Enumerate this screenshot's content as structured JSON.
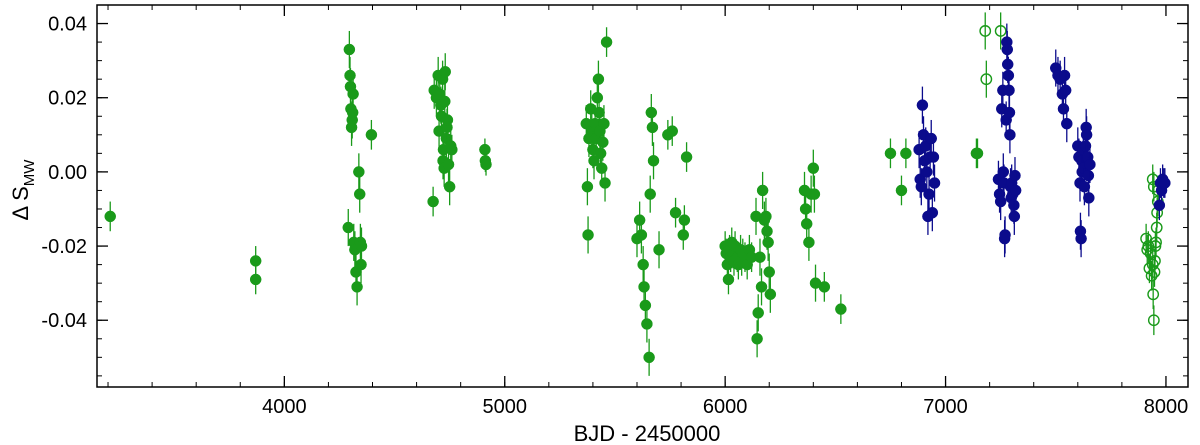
{
  "chart_data": {
    "type": "scatter",
    "xlabel": "BJD - 2450000",
    "ylabel": "Δ S",
    "ylabel_sub": "MW",
    "xlim": [
      3150,
      8100
    ],
    "ylim": [
      -0.058,
      0.045
    ],
    "xticks": [
      4000,
      5000,
      6000,
      7000,
      8000
    ],
    "xtick_labels": [
      "4000",
      "5000",
      "6000",
      "7000",
      "8000"
    ],
    "yticks": [
      -0.04,
      -0.02,
      0.0,
      0.02,
      0.04
    ],
    "ytick_labels": [
      "-0.04",
      "-0.02",
      "0.00",
      "0.02",
      "0.04"
    ],
    "x_minor_step": 200,
    "y_minor_step": 0.005,
    "grid": false,
    "colors": {
      "green": "#1a9a1a",
      "blue": "#0b0b8c"
    },
    "series": [
      {
        "color": "#1a9a1a",
        "marker": "filled-circle",
        "points": [
          [
            3210,
            -0.012,
            0.004
          ],
          [
            3870,
            -0.024,
            0.004
          ],
          [
            3870,
            -0.029,
            0.004
          ],
          [
            4295,
            0.033,
            0.005
          ],
          [
            4298,
            0.026,
            0.005
          ],
          [
            4300,
            0.023,
            0.005
          ],
          [
            4302,
            0.017,
            0.005
          ],
          [
            4305,
            0.012,
            0.005
          ],
          [
            4308,
            0.014,
            0.005
          ],
          [
            4310,
            0.016,
            0.005
          ],
          [
            4312,
            0.021,
            0.005
          ],
          [
            4290,
            -0.015,
            0.005
          ],
          [
            4315,
            -0.019,
            0.005
          ],
          [
            4320,
            -0.021,
            0.005
          ],
          [
            4325,
            -0.027,
            0.005
          ],
          [
            4330,
            -0.031,
            0.005
          ],
          [
            4338,
            -0.0,
            0.005
          ],
          [
            4342,
            -0.006,
            0.005
          ],
          [
            4345,
            -0.019,
            0.005
          ],
          [
            4348,
            -0.025,
            0.005
          ],
          [
            4350,
            -0.02,
            0.005
          ],
          [
            4395,
            0.01,
            0.004
          ],
          [
            4675,
            -0.008,
            0.004
          ],
          [
            4680,
            0.022,
            0.005
          ],
          [
            4690,
            0.02,
            0.005
          ],
          [
            4698,
            0.026,
            0.005
          ],
          [
            4702,
            0.011,
            0.005
          ],
          [
            4705,
            0.021,
            0.005
          ],
          [
            4710,
            0.018,
            0.005
          ],
          [
            4713,
            0.015,
            0.005
          ],
          [
            4718,
            0.025,
            0.005
          ],
          [
            4720,
            0.003,
            0.005
          ],
          [
            4722,
            0.006,
            0.005
          ],
          [
            4725,
            0.001,
            0.005
          ],
          [
            4728,
            0.019,
            0.005
          ],
          [
            4730,
            0.027,
            0.005
          ],
          [
            4735,
            0.009,
            0.005
          ],
          [
            4738,
            0.012,
            0.005
          ],
          [
            4740,
            0.014,
            0.005
          ],
          [
            4745,
            0.002,
            0.005
          ],
          [
            4750,
            -0.004,
            0.005
          ],
          [
            4755,
            0.007,
            0.005
          ],
          [
            4760,
            0.006,
            0.004
          ],
          [
            4910,
            0.006,
            0.003
          ],
          [
            4912,
            0.003,
            0.003
          ],
          [
            4915,
            0.002,
            0.003
          ],
          [
            5370,
            0.013,
            0.005
          ],
          [
            5375,
            -0.004,
            0.005
          ],
          [
            5378,
            -0.017,
            0.005
          ],
          [
            5382,
            0.009,
            0.005
          ],
          [
            5390,
            0.017,
            0.005
          ],
          [
            5395,
            0.011,
            0.005
          ],
          [
            5400,
            0.006,
            0.005
          ],
          [
            5405,
            0.003,
            0.005
          ],
          [
            5410,
            0.013,
            0.005
          ],
          [
            5415,
            0.009,
            0.005
          ],
          [
            5420,
            0.02,
            0.005
          ],
          [
            5425,
            0.025,
            0.005
          ],
          [
            5428,
            0.016,
            0.005
          ],
          [
            5432,
            0.011,
            0.005
          ],
          [
            5435,
            0.005,
            0.005
          ],
          [
            5440,
            0.001,
            0.005
          ],
          [
            5445,
            0.008,
            0.005
          ],
          [
            5450,
            0.013,
            0.005
          ],
          [
            5455,
            -0.003,
            0.005
          ],
          [
            5462,
            0.035,
            0.004
          ],
          [
            5600,
            -0.018,
            0.005
          ],
          [
            5612,
            -0.013,
            0.005
          ],
          [
            5620,
            -0.017,
            0.005
          ],
          [
            5628,
            -0.025,
            0.005
          ],
          [
            5632,
            -0.031,
            0.005
          ],
          [
            5638,
            -0.036,
            0.005
          ],
          [
            5645,
            -0.041,
            0.005
          ],
          [
            5655,
            -0.05,
            0.005
          ],
          [
            5660,
            -0.006,
            0.005
          ],
          [
            5665,
            0.016,
            0.005
          ],
          [
            5670,
            0.012,
            0.005
          ],
          [
            5675,
            0.003,
            0.005
          ],
          [
            5700,
            -0.021,
            0.005
          ],
          [
            5740,
            0.01,
            0.004
          ],
          [
            5760,
            0.011,
            0.004
          ],
          [
            5775,
            -0.011,
            0.004
          ],
          [
            5810,
            -0.017,
            0.004
          ],
          [
            5815,
            -0.013,
            0.004
          ],
          [
            5825,
            0.004,
            0.004
          ],
          [
            6000,
            -0.02,
            0.004
          ],
          [
            6005,
            -0.022,
            0.004
          ],
          [
            6010,
            -0.025,
            0.004
          ],
          [
            6015,
            -0.029,
            0.004
          ],
          [
            6020,
            -0.021,
            0.004
          ],
          [
            6025,
            -0.023,
            0.004
          ],
          [
            6030,
            -0.019,
            0.004
          ],
          [
            6035,
            -0.022,
            0.004
          ],
          [
            6040,
            -0.024,
            0.004
          ],
          [
            6045,
            -0.02,
            0.004
          ],
          [
            6055,
            -0.023,
            0.004
          ],
          [
            6060,
            -0.025,
            0.004
          ],
          [
            6070,
            -0.021,
            0.004
          ],
          [
            6075,
            -0.024,
            0.004
          ],
          [
            6080,
            -0.022,
            0.004
          ],
          [
            6090,
            -0.023,
            0.004
          ],
          [
            6100,
            -0.025,
            0.004
          ],
          [
            6110,
            -0.021,
            0.004
          ],
          [
            6120,
            -0.023,
            0.004
          ],
          [
            6140,
            -0.012,
            0.005
          ],
          [
            6145,
            -0.045,
            0.005
          ],
          [
            6150,
            -0.038,
            0.005
          ],
          [
            6158,
            -0.023,
            0.005
          ],
          [
            6165,
            -0.031,
            0.005
          ],
          [
            6170,
            -0.005,
            0.005
          ],
          [
            6178,
            -0.013,
            0.005
          ],
          [
            6185,
            -0.012,
            0.005
          ],
          [
            6190,
            -0.016,
            0.005
          ],
          [
            6195,
            -0.019,
            0.005
          ],
          [
            6200,
            -0.027,
            0.005
          ],
          [
            6205,
            -0.033,
            0.005
          ],
          [
            6360,
            -0.005,
            0.005
          ],
          [
            6365,
            -0.01,
            0.005
          ],
          [
            6370,
            -0.014,
            0.005
          ],
          [
            6380,
            -0.019,
            0.005
          ],
          [
            6390,
            -0.006,
            0.005
          ],
          [
            6400,
            0.001,
            0.005
          ],
          [
            6405,
            -0.006,
            0.005
          ],
          [
            6410,
            -0.03,
            0.005
          ],
          [
            6450,
            -0.031,
            0.004
          ],
          [
            6525,
            -0.037,
            0.004
          ],
          [
            6750,
            0.005,
            0.004
          ],
          [
            6800,
            -0.005,
            0.004
          ],
          [
            6820,
            0.005,
            0.004
          ],
          [
            7140,
            0.005,
            0.004
          ],
          [
            7145,
            0.005,
            0.004
          ]
        ]
      },
      {
        "color": "#1a9a1a",
        "marker": "open-circle",
        "points": [
          [
            7180,
            0.038,
            0.005
          ],
          [
            7185,
            0.025,
            0.005
          ],
          [
            7250,
            0.038,
            0.005
          ],
          [
            7910,
            -0.018,
            0.004
          ],
          [
            7915,
            -0.021,
            0.004
          ],
          [
            7920,
            -0.02,
            0.004
          ],
          [
            7925,
            -0.026,
            0.004
          ],
          [
            7930,
            -0.022,
            0.004
          ],
          [
            7935,
            -0.028,
            0.004
          ],
          [
            7940,
            -0.025,
            0.004
          ],
          [
            7942,
            -0.033,
            0.004
          ],
          [
            7945,
            -0.04,
            0.004
          ],
          [
            7948,
            -0.027,
            0.004
          ],
          [
            7950,
            -0.024,
            0.004
          ],
          [
            7952,
            -0.02,
            0.004
          ],
          [
            7955,
            -0.019,
            0.004
          ],
          [
            7958,
            -0.015,
            0.004
          ],
          [
            7960,
            -0.011,
            0.004
          ],
          [
            7963,
            -0.008,
            0.004
          ],
          [
            7965,
            -0.005,
            0.004
          ],
          [
            7940,
            -0.002,
            0.004
          ],
          [
            7945,
            -0.004,
            0.004
          ]
        ]
      },
      {
        "color": "#0b0b8c",
        "marker": "filled-circle",
        "points": [
          [
            6880,
            0.006,
            0.005
          ],
          [
            6885,
            -0.002,
            0.005
          ],
          [
            6890,
            -0.004,
            0.005
          ],
          [
            6895,
            0.018,
            0.005
          ],
          [
            6900,
            0.01,
            0.005
          ],
          [
            6905,
            0.003,
            0.005
          ],
          [
            6910,
            0.007,
            0.005
          ],
          [
            6915,
            0.0,
            0.005
          ],
          [
            6920,
            -0.012,
            0.005
          ],
          [
            6925,
            -0.006,
            0.005
          ],
          [
            6930,
            0.004,
            0.005
          ],
          [
            6935,
            0.009,
            0.005
          ],
          [
            6940,
            -0.011,
            0.005
          ],
          [
            6945,
            0.004,
            0.005
          ],
          [
            6950,
            -0.003,
            0.005
          ],
          [
            7240,
            -0.002,
            0.005
          ],
          [
            7245,
            -0.006,
            0.005
          ],
          [
            7250,
            -0.008,
            0.005
          ],
          [
            7255,
            0.017,
            0.005
          ],
          [
            7260,
            0.022,
            0.005
          ],
          [
            7262,
            0.0,
            0.005
          ],
          [
            7265,
            -0.003,
            0.005
          ],
          [
            7268,
            -0.018,
            0.005
          ],
          [
            7270,
            -0.017,
            0.005
          ],
          [
            7275,
            0.014,
            0.005
          ],
          [
            7278,
            0.035,
            0.005
          ],
          [
            7280,
            0.033,
            0.005
          ],
          [
            7282,
            0.029,
            0.005
          ],
          [
            7285,
            0.026,
            0.005
          ],
          [
            7288,
            0.022,
            0.005
          ],
          [
            7290,
            0.016,
            0.005
          ],
          [
            7292,
            0.01,
            0.005
          ],
          [
            7295,
            -0.004,
            0.005
          ],
          [
            7298,
            -0.007,
            0.005
          ],
          [
            7300,
            -0.003,
            0.005
          ],
          [
            7305,
            -0.006,
            0.005
          ],
          [
            7310,
            -0.009,
            0.005
          ],
          [
            7312,
            -0.012,
            0.005
          ],
          [
            7315,
            -0.001,
            0.005
          ],
          [
            7318,
            -0.005,
            0.005
          ],
          [
            7500,
            0.028,
            0.005
          ],
          [
            7510,
            0.026,
            0.005
          ],
          [
            7520,
            0.025,
            0.005
          ],
          [
            7530,
            0.021,
            0.005
          ],
          [
            7535,
            0.017,
            0.005
          ],
          [
            7540,
            0.026,
            0.005
          ],
          [
            7545,
            0.022,
            0.005
          ],
          [
            7550,
            0.013,
            0.005
          ],
          [
            7600,
            0.007,
            0.005
          ],
          [
            7605,
            0.004,
            0.005
          ],
          [
            7610,
            -0.003,
            0.005
          ],
          [
            7612,
            -0.016,
            0.005
          ],
          [
            7615,
            -0.018,
            0.005
          ],
          [
            7618,
            0.003,
            0.005
          ],
          [
            7620,
            0.0,
            0.005
          ],
          [
            7625,
            0.006,
            0.005
          ],
          [
            7628,
            0.001,
            0.005
          ],
          [
            7630,
            -0.004,
            0.005
          ],
          [
            7635,
            0.007,
            0.005
          ],
          [
            7638,
            0.012,
            0.005
          ],
          [
            7640,
            0.01,
            0.005
          ],
          [
            7645,
            0.004,
            0.005
          ],
          [
            7648,
            -0.001,
            0.005
          ],
          [
            7650,
            -0.007,
            0.005
          ],
          [
            7655,
            0.002,
            0.005
          ],
          [
            7970,
            -0.009,
            0.004
          ],
          [
            7975,
            -0.003,
            0.004
          ],
          [
            7980,
            -0.005,
            0.004
          ],
          [
            7985,
            -0.002,
            0.004
          ],
          [
            7990,
            -0.003,
            0.004
          ],
          [
            7995,
            -0.003,
            0.004
          ]
        ]
      }
    ]
  }
}
